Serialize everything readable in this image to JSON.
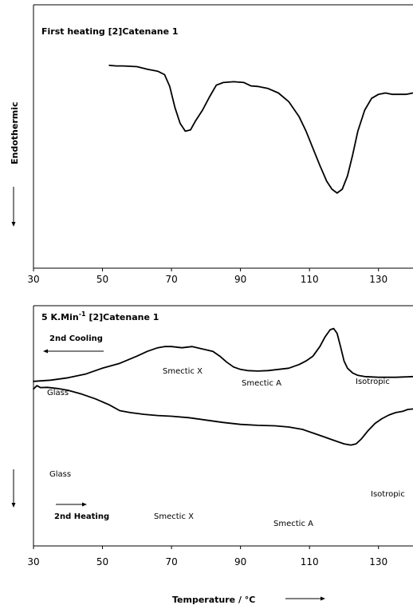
{
  "chart_data": [
    {
      "type": "line",
      "title": "First heating [2]Catenane 1",
      "ylabel": "Endothermic",
      "xlabel": "",
      "xlim": [
        30,
        140
      ],
      "ylim": [
        0,
        1
      ],
      "x_ticks": [
        "30",
        "50",
        "70",
        "90",
        "110",
        "130"
      ],
      "grid": false,
      "series": [
        {
          "x": [
            52,
            54,
            56,
            60,
            63,
            66,
            68,
            69.5,
            71,
            72.5,
            74,
            75.5,
            77,
            79,
            81,
            83,
            85,
            88,
            91,
            93,
            95,
            98,
            101,
            104,
            107,
            109,
            111,
            113,
            115,
            116.5,
            118,
            119.5,
            121,
            122.5,
            124,
            126,
            128,
            130,
            132,
            134,
            136,
            138,
            140
          ],
          "y": [
            0.77,
            0.768,
            0.768,
            0.765,
            0.755,
            0.748,
            0.735,
            0.69,
            0.61,
            0.55,
            0.52,
            0.525,
            0.56,
            0.6,
            0.65,
            0.695,
            0.705,
            0.708,
            0.705,
            0.692,
            0.69,
            0.682,
            0.665,
            0.632,
            0.575,
            0.52,
            0.455,
            0.39,
            0.33,
            0.3,
            0.285,
            0.3,
            0.35,
            0.43,
            0.52,
            0.6,
            0.645,
            0.66,
            0.665,
            0.66,
            0.66,
            0.66,
            0.665
          ]
        }
      ]
    },
    {
      "type": "line",
      "title": "5 K.Min",
      "title_sup": "-1",
      "title_rest": " [2]Catenane 1",
      "xlabel": "Temperature / °C",
      "ylabel": "",
      "xlim": [
        30,
        140
      ],
      "ylim": [
        0,
        1
      ],
      "x_ticks": [
        "30",
        "50",
        "70",
        "90",
        "110",
        "130"
      ],
      "grid": false,
      "series": [
        {
          "name": "2nd Cooling",
          "x": [
            30,
            35,
            40,
            45,
            50,
            55,
            60,
            63,
            66,
            68,
            70,
            73,
            76,
            79,
            82,
            84,
            86,
            88,
            90,
            92,
            95,
            98,
            101,
            104,
            107,
            109,
            111,
            113,
            114.5,
            116,
            117,
            118,
            119,
            120,
            121,
            122.5,
            124,
            126,
            130,
            135,
            140
          ],
          "y": [
            0.685,
            0.69,
            0.7,
            0.715,
            0.74,
            0.76,
            0.79,
            0.81,
            0.825,
            0.83,
            0.83,
            0.825,
            0.83,
            0.82,
            0.81,
            0.79,
            0.765,
            0.745,
            0.735,
            0.73,
            0.728,
            0.73,
            0.735,
            0.74,
            0.755,
            0.77,
            0.79,
            0.83,
            0.87,
            0.9,
            0.905,
            0.885,
            0.83,
            0.77,
            0.74,
            0.72,
            0.71,
            0.705,
            0.702,
            0.702,
            0.705
          ]
        },
        {
          "name": "2nd Heating",
          "x": [
            30,
            31,
            32,
            34,
            37,
            40,
            44,
            48,
            52,
            55,
            58,
            62,
            66,
            70,
            75,
            80,
            85,
            90,
            95,
            100,
            104,
            108,
            111,
            114,
            117,
            120,
            122,
            123.5,
            125,
            127,
            129,
            131,
            133,
            135,
            137,
            138.5,
            140
          ],
          "y": [
            0.653,
            0.667,
            0.659,
            0.66,
            0.655,
            0.648,
            0.632,
            0.612,
            0.587,
            0.563,
            0.555,
            0.548,
            0.543,
            0.54,
            0.534,
            0.524,
            0.514,
            0.506,
            0.502,
            0.5,
            0.495,
            0.485,
            0.47,
            0.455,
            0.44,
            0.425,
            0.42,
            0.425,
            0.445,
            0.48,
            0.51,
            0.53,
            0.545,
            0.555,
            0.56,
            0.568,
            0.57
          ]
        }
      ],
      "annotations": [
        "Glass",
        "Smectic X",
        "Smectic A",
        "Isotropic",
        "Glass",
        "Smectic X",
        "Smectic A",
        "Isotropic"
      ]
    }
  ]
}
